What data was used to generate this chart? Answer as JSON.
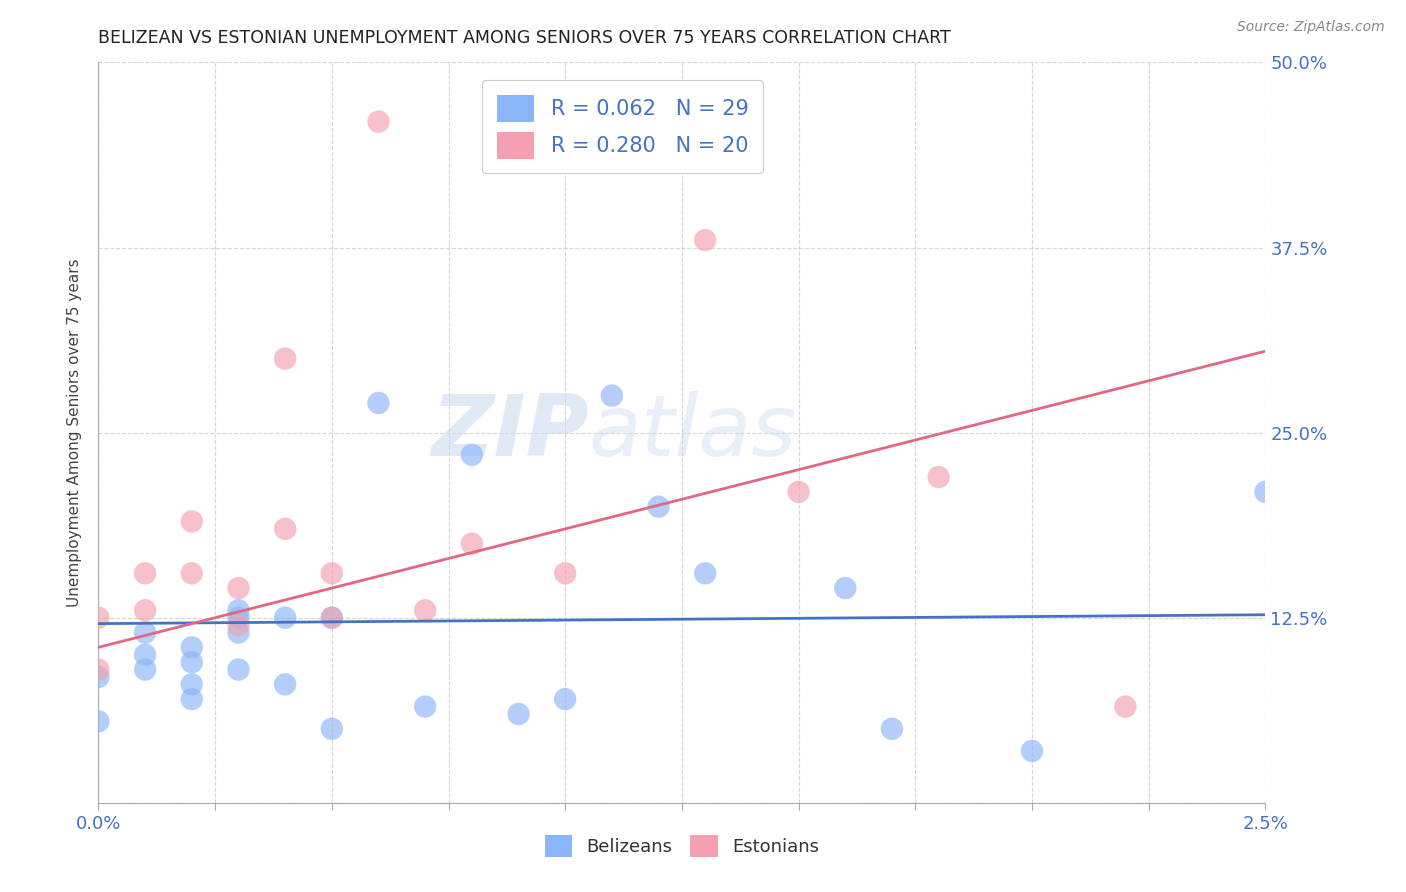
{
  "title": "BELIZEAN VS ESTONIAN UNEMPLOYMENT AMONG SENIORS OVER 75 YEARS CORRELATION CHART",
  "source": "Source: ZipAtlas.com",
  "ylabel": "Unemployment Among Seniors over 75 years",
  "xlim": [
    0.0,
    0.025
  ],
  "ylim": [
    0.0,
    0.5
  ],
  "xticks": [
    0.0,
    0.0025,
    0.005,
    0.0075,
    0.01,
    0.0125,
    0.015,
    0.0175,
    0.02,
    0.0225,
    0.025
  ],
  "xticklabels_show": {
    "0.0": "0.0%",
    "0.025": "2.5%"
  },
  "yticks": [
    0.0,
    0.125,
    0.25,
    0.375,
    0.5
  ],
  "yticklabels": [
    "",
    "12.5%",
    "25.0%",
    "37.5%",
    "50.0%"
  ],
  "belize_color": "#8ab4f8",
  "estonia_color": "#f4a0b0",
  "belize_R": 0.062,
  "belize_N": 29,
  "estonia_R": 0.28,
  "estonia_N": 20,
  "belize_line_color": "#4472c4",
  "estonia_line_color": "#e06880",
  "watermark_zip": "ZIP",
  "watermark_atlas": "atlas",
  "tick_label_color": "#4472c4",
  "belize_points_x": [
    0.0,
    0.0,
    0.001,
    0.001,
    0.001,
    0.002,
    0.002,
    0.002,
    0.002,
    0.003,
    0.003,
    0.003,
    0.003,
    0.004,
    0.004,
    0.005,
    0.005,
    0.006,
    0.007,
    0.008,
    0.009,
    0.01,
    0.011,
    0.012,
    0.013,
    0.016,
    0.017,
    0.02,
    0.025
  ],
  "belize_points_y": [
    0.055,
    0.085,
    0.09,
    0.1,
    0.115,
    0.095,
    0.105,
    0.08,
    0.07,
    0.13,
    0.125,
    0.115,
    0.09,
    0.125,
    0.08,
    0.125,
    0.05,
    0.27,
    0.065,
    0.235,
    0.06,
    0.07,
    0.275,
    0.2,
    0.155,
    0.145,
    0.05,
    0.035,
    0.21
  ],
  "estonia_points_x": [
    0.0,
    0.0,
    0.001,
    0.001,
    0.002,
    0.002,
    0.003,
    0.003,
    0.004,
    0.004,
    0.005,
    0.005,
    0.006,
    0.007,
    0.008,
    0.01,
    0.013,
    0.015,
    0.018,
    0.022
  ],
  "estonia_points_y": [
    0.125,
    0.09,
    0.13,
    0.155,
    0.155,
    0.19,
    0.145,
    0.12,
    0.3,
    0.185,
    0.155,
    0.125,
    0.46,
    0.13,
    0.175,
    0.155,
    0.38,
    0.21,
    0.22,
    0.065
  ],
  "belize_line_x": [
    0.0,
    0.025
  ],
  "belize_line_y": [
    0.121,
    0.127
  ],
  "estonia_line_x": [
    0.0,
    0.025
  ],
  "estonia_line_y": [
    0.105,
    0.305
  ]
}
